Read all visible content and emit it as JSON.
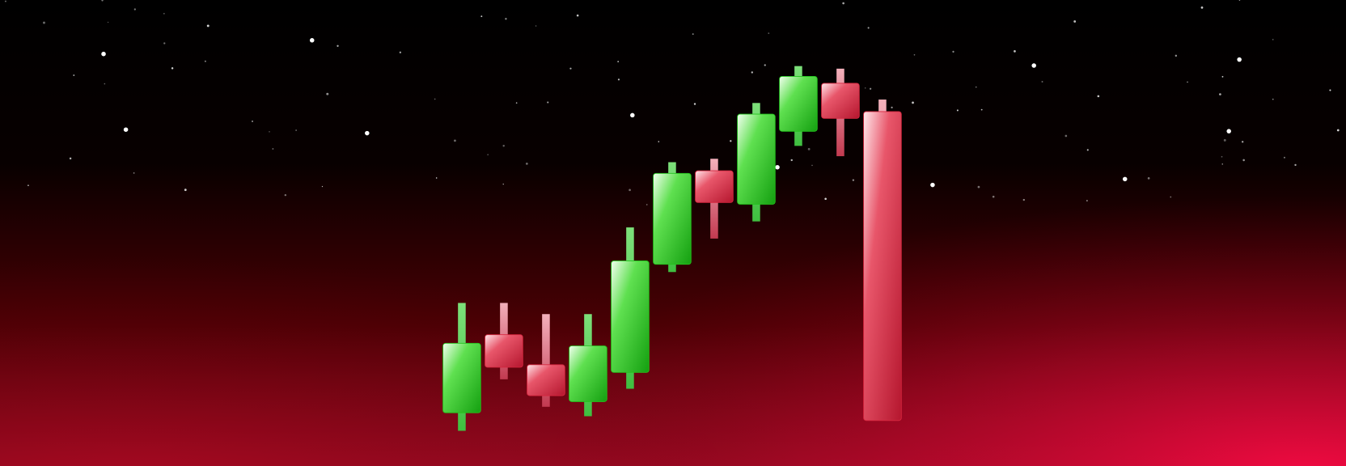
{
  "chart_data": {
    "type": "candlestick",
    "ylim": [
      0,
      543
    ],
    "up_color": "#22c41c",
    "down_color": "#d8263f",
    "open": [
      62,
      153,
      118,
      75,
      109,
      235,
      344,
      305,
      390,
      446,
      413
    ],
    "high": [
      190,
      190,
      177,
      177,
      278,
      354,
      358,
      423,
      466,
      463,
      427
    ],
    "low": [
      41,
      101,
      69,
      58,
      90,
      226,
      265,
      285,
      373,
      361,
      53
    ],
    "close": [
      143,
      115,
      82,
      140,
      239,
      341,
      307,
      410,
      454,
      405,
      53
    ]
  }
}
